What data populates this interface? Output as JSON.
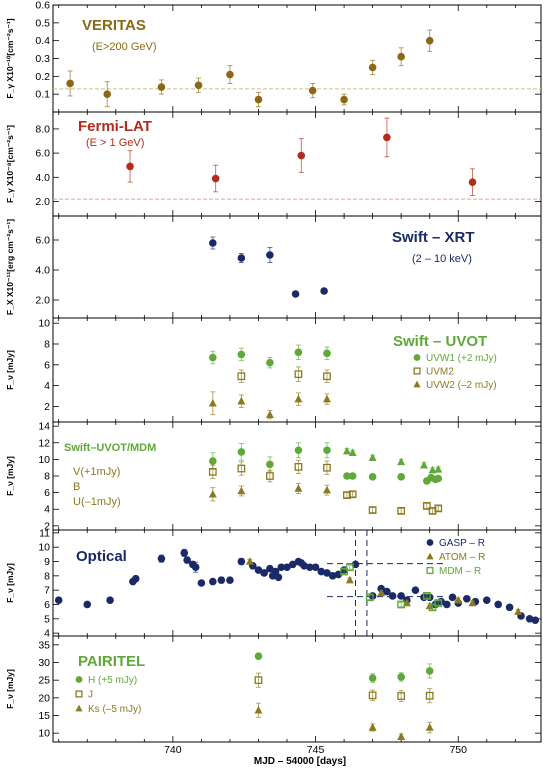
{
  "chart_data": {
    "type": "scatter",
    "xlabel": "MJD – 54000 [days]",
    "x_ticks": [
      740,
      745,
      750
    ],
    "xlim": [
      735.8,
      752.9
    ],
    "colors": {
      "veritas": "#8b6914",
      "fermi": "#b22b1c",
      "swift_blue": "#1a2a66",
      "uvot_green": "#5fa83a",
      "olive": "#8b7a1f",
      "optical_blue": "#1a2a66"
    },
    "panels": [
      {
        "id": "veritas",
        "ylabel": "F_γ X10⁻¹⁰[cm⁻²s⁻¹]",
        "ylim": [
          0.0,
          0.6
        ],
        "yticks": [
          0.1,
          0.2,
          0.3,
          0.4,
          0.5,
          0.6
        ],
        "ytick_labels": [
          "0.1",
          "0.2",
          "0.3",
          "0.4",
          "0.5",
          "0.6"
        ],
        "labels": [
          {
            "text": "VERITAS",
            "role": "title",
            "color": "#8b6914"
          },
          {
            "text": "(E>200 GeV)",
            "role": "subtitle",
            "color": "#8b6914"
          }
        ],
        "hline": 0.13,
        "hline_color": "#c9c08a",
        "series": [
          {
            "marker": "circle",
            "color": "#8b6914",
            "x": [
              736.4,
              737.7,
              739.6,
              740.9,
              742.0,
              743.0,
              744.9,
              746.0,
              747.0,
              748.0,
              749.0
            ],
            "y": [
              0.16,
              0.1,
              0.14,
              0.15,
              0.21,
              0.07,
              0.12,
              0.07,
              0.25,
              0.31,
              0.4
            ],
            "err": [
              0.07,
              0.07,
              0.04,
              0.04,
              0.05,
              0.04,
              0.04,
              0.03,
              0.04,
              0.05,
              0.06
            ]
          }
        ]
      },
      {
        "id": "fermi",
        "ylabel": "F_γ X10⁻⁸[cm⁻²s⁻¹]",
        "ylim": [
          0.8,
          9.4
        ],
        "yticks": [
          2,
          4,
          6,
          8
        ],
        "ytick_labels": [
          "2.0",
          "4.0",
          "6.0",
          "8.0"
        ],
        "labels": [
          {
            "text": "Fermi-LAT",
            "role": "title",
            "color": "#b22b1c"
          },
          {
            "text": "(E > 1 GeV)",
            "role": "subtitle",
            "color": "#b22b1c"
          }
        ],
        "hline": 2.2,
        "hline_color": "#e0a0a0",
        "series": [
          {
            "marker": "circle",
            "color": "#b22b1c",
            "x": [
              738.5,
              741.5,
              744.5,
              747.5,
              750.5
            ],
            "y": [
              4.9,
              3.9,
              5.8,
              7.3,
              3.6
            ],
            "err": [
              1.3,
              1.1,
              1.4,
              1.6,
              1.1
            ]
          }
        ]
      },
      {
        "id": "swift-xrt",
        "ylabel": "F_X X10⁻¹¹[erg cm⁻²s⁻¹]",
        "ylim": [
          0.8,
          7.6
        ],
        "yticks": [
          2,
          4,
          6
        ],
        "ytick_labels": [
          "2.0",
          "4.0",
          "6.0"
        ],
        "labels": [
          {
            "text": "Swift – XRT",
            "role": "title",
            "color": "#1a2a66"
          },
          {
            "text": "(2 – 10 keV)",
            "role": "subtitle",
            "color": "#1a2a66"
          }
        ],
        "series": [
          {
            "marker": "circle",
            "color": "#1a2a66",
            "x": [
              741.4,
              742.4,
              743.4,
              744.3,
              745.3
            ],
            "y": [
              5.8,
              4.8,
              5.0,
              2.4,
              2.6
            ],
            "err": [
              0.4,
              0.3,
              0.5,
              0.15,
              0.15
            ]
          }
        ]
      },
      {
        "id": "swift-uvot",
        "ylabel": "F_ν [mJy]",
        "ylim": [
          0.5,
          10.5
        ],
        "yticks": [
          2,
          4,
          6,
          8,
          10
        ],
        "ytick_labels": [
          "2",
          "4",
          "6",
          "8",
          "10"
        ],
        "labels": [
          {
            "text": "Swift – UVOT",
            "role": "title",
            "color": "#5fa83a"
          }
        ],
        "legend": [
          {
            "marker": "circle",
            "color": "#5fa83a",
            "text": "UVW1 (+2 mJy)"
          },
          {
            "marker": "square-open",
            "color": "#8b7a1f",
            "text": "UVM2"
          },
          {
            "marker": "triangle",
            "color": "#8b7a1f",
            "text": "UVW2 (–2 mJy)"
          }
        ],
        "series": [
          {
            "marker": "circle",
            "color": "#5fa83a",
            "x": [
              741.4,
              742.4,
              743.4,
              744.4,
              745.4
            ],
            "y": [
              6.7,
              7.0,
              6.2,
              7.2,
              7.1
            ],
            "err": [
              0.6,
              0.6,
              0.5,
              0.7,
              0.6
            ]
          },
          {
            "marker": "square-open",
            "color": "#8b7a1f",
            "x": [
              742.4,
              744.4,
              745.4
            ],
            "y": [
              4.9,
              5.1,
              4.9
            ],
            "err": [
              0.6,
              0.7,
              0.6
            ]
          },
          {
            "marker": "triangle",
            "color": "#8b7a1f",
            "x": [
              741.4,
              742.4,
              743.4,
              744.4,
              745.4
            ],
            "y": [
              2.3,
              2.5,
              1.2,
              2.7,
              2.7
            ],
            "err": [
              1.1,
              0.6,
              0.4,
              0.6,
              0.5
            ]
          }
        ]
      },
      {
        "id": "uvot-mdm",
        "ylabel": "F_ν [mJy]",
        "ylim": [
          1.5,
          14.5
        ],
        "yticks": [
          2,
          4,
          6,
          8,
          10,
          12,
          14
        ],
        "ytick_labels": [
          "2",
          "4",
          "6",
          "8",
          "10",
          "12",
          "14"
        ],
        "labels": [
          {
            "text": "Swift–UVOT/MDM",
            "role": "title",
            "color": "#5fa83a"
          },
          {
            "text": "V(+1mJy)",
            "role": "band",
            "color": "#8b7a1f"
          },
          {
            "text": "B",
            "role": "band",
            "color": "#8b7a1f"
          },
          {
            "text": "U(–1mJy)",
            "role": "band",
            "color": "#8b7a1f"
          }
        ],
        "series": [
          {
            "marker": "circle",
            "color": "#5fa83a",
            "x": [
              741.4,
              742.4,
              743.4,
              744.4,
              745.4,
              746.1,
              746.3,
              747.0,
              748.0,
              748.9,
              749.05,
              749.2,
              749.3
            ],
            "y": [
              9.8,
              10.9,
              9.4,
              11.1,
              11.1,
              8.0,
              8.0,
              7.9,
              7.9,
              7.4,
              7.8,
              7.6,
              7.7
            ],
            "err": [
              1.0,
              1.0,
              0.9,
              0.9,
              0.9,
              0.3,
              0.3,
              0.3,
              0.3,
              0.3,
              0.3,
              0.3,
              0.3
            ]
          },
          {
            "marker": "triangle",
            "color": "#5fa83a",
            "x": [
              746.1,
              746.3,
              747.0,
              748.0,
              748.8,
              749.1,
              749.3
            ],
            "y": [
              11.0,
              10.8,
              10.2,
              9.7,
              9.3,
              8.7,
              8.8
            ],
            "err": [
              0.3,
              0.3,
              0.3,
              0.3,
              0.3,
              0.3,
              0.3
            ]
          },
          {
            "marker": "square-open",
            "color": "#8b7a1f",
            "x": [
              741.4,
              742.4,
              743.4,
              744.4,
              745.4,
              746.1,
              746.3,
              747.0,
              748.0,
              748.9,
              749.1,
              749.3
            ],
            "y": [
              8.5,
              8.9,
              8.0,
              9.1,
              9.0,
              5.7,
              5.8,
              3.9,
              3.8,
              4.4,
              3.8,
              4.1
            ],
            "err": [
              0.8,
              0.8,
              0.7,
              0.8,
              0.8,
              0.3,
              0.3,
              0.3,
              0.3,
              0.3,
              0.3,
              0.3
            ]
          },
          {
            "marker": "triangle",
            "color": "#8b7a1f",
            "x": [
              741.4,
              742.4,
              744.4,
              745.4
            ],
            "y": [
              5.8,
              6.2,
              6.5,
              6.3
            ],
            "err": [
              0.8,
              0.6,
              0.6,
              0.6
            ]
          }
        ]
      },
      {
        "id": "optical",
        "ylabel": "F_ν [mJy]",
        "ylim": [
          3.8,
          11.2
        ],
        "yticks": [
          4,
          5,
          6,
          7,
          8,
          9,
          10,
          11
        ],
        "ytick_labels": [
          "4",
          "5",
          "6",
          "7",
          "8",
          "9",
          "10",
          "11"
        ],
        "labels": [
          {
            "text": "Optical",
            "role": "title",
            "color": "#1a2a66"
          }
        ],
        "legend": [
          {
            "marker": "circle",
            "color": "#1a2a66",
            "text": "GASP – R"
          },
          {
            "marker": "triangle",
            "color": "#8b7a1f",
            "text": "ATOM – R"
          },
          {
            "marker": "square-open",
            "color": "#5fa83a",
            "text": "MDM – R"
          }
        ],
        "vlines": [
          746.4,
          746.8
        ],
        "hlines": [
          {
            "y": 8.85,
            "x0": 745.4,
            "x1": 749.5
          },
          {
            "y": 6.55,
            "x0": 745.4,
            "x1": 749.5
          }
        ],
        "series": [
          {
            "marker": "circle",
            "color": "#1a2a66",
            "x": [
              736.0,
              737.0,
              737.8,
              738.6,
              738.7,
              739.6,
              740.4,
              740.5,
              740.7,
              740.8,
              741.0,
              741.4,
              741.7,
              742.0,
              742.4,
              742.8,
              743.0,
              743.2,
              743.4,
              743.5,
              743.6,
              743.7,
              743.8,
              744.0,
              744.2,
              744.4,
              744.5,
              744.6,
              744.8,
              745.0,
              745.2,
              745.4,
              745.6,
              745.8,
              746.0,
              746.4,
              747.0,
              747.3,
              747.5,
              747.7,
              748.0,
              748.2,
              748.5,
              748.8,
              749.0,
              749.2,
              749.4,
              749.6,
              749.8,
              750.0,
              750.3,
              750.6,
              751.0,
              751.4,
              751.8,
              752.2,
              752.5,
              752.7
            ],
            "y": [
              6.3,
              6.0,
              6.3,
              7.6,
              7.8,
              9.2,
              9.6,
              9.1,
              8.8,
              8.6,
              7.5,
              7.6,
              7.7,
              7.7,
              9.0,
              8.7,
              8.4,
              8.2,
              8.5,
              8.0,
              8.3,
              7.9,
              8.6,
              8.6,
              8.8,
              9.0,
              8.9,
              8.7,
              8.6,
              8.6,
              8.3,
              8.2,
              8.0,
              8.1,
              8.4,
              8.8,
              6.6,
              7.1,
              6.9,
              6.6,
              6.6,
              6.3,
              7.0,
              6.5,
              6.5,
              6.0,
              6.2,
              6.0,
              6.5,
              6.1,
              6.4,
              6.2,
              6.3,
              6.0,
              5.8,
              5.2,
              5.0,
              4.9
            ],
            "err": [
              0.1,
              0.1,
              0.1,
              0.1,
              0.1,
              0.25,
              0.25,
              0.2,
              0.2,
              0.35,
              0.1,
              0.1,
              0.2,
              0.1,
              0.2,
              0.1,
              0.1,
              0.1,
              0.1,
              0.1,
              0.1,
              0.1,
              0.1,
              0.1,
              0.1,
              0.1,
              0.1,
              0.1,
              0.1,
              0.1,
              0.1,
              0.1,
              0.1,
              0.1,
              0.1,
              0.1,
              0.1,
              0.1,
              0.1,
              0.1,
              0.1,
              0.1,
              0.1,
              0.1,
              0.1,
              0.1,
              0.1,
              0.1,
              0.1,
              0.1,
              0.1,
              0.1,
              0.1,
              0.1,
              0.1,
              0.1,
              0.1,
              0.1
            ]
          },
          {
            "marker": "triangle",
            "color": "#8b7a1f",
            "x": [
              742.7,
              746.2,
              747.3,
              748.2,
              749.0,
              750.0,
              750.5,
              752.1
            ],
            "y": [
              9.0,
              7.7,
              6.8,
              6.1,
              5.9,
              6.3,
              6.1,
              5.5
            ],
            "err": [
              0.15,
              0.15,
              0.15,
              0.15,
              0.15,
              0.15,
              0.15,
              0.15
            ]
          },
          {
            "marker": "square-open",
            "color": "#5fa83a",
            "x": [
              746.0,
              746.2,
              746.9,
              748.0,
              748.9,
              749.1,
              749.3
            ],
            "y": [
              8.3,
              8.6,
              6.5,
              6.0,
              6.6,
              5.8,
              6.1
            ],
            "err": [
              0.15,
              0.15,
              0.15,
              0.15,
              0.15,
              0.15,
              0.15
            ]
          }
        ]
      },
      {
        "id": "pairitel",
        "ylabel": "F_ν [mJy]",
        "ylim": [
          7.5,
          37.5
        ],
        "yticks": [
          10,
          15,
          20,
          25,
          30,
          35
        ],
        "ytick_labels": [
          "10",
          "15",
          "20",
          "25",
          "30",
          "35"
        ],
        "labels": [
          {
            "text": "PAIRITEL",
            "role": "title",
            "color": "#5fa83a"
          }
        ],
        "legend": [
          {
            "marker": "circle",
            "color": "#5fa83a",
            "text": "H (+5 mJy)"
          },
          {
            "marker": "square-open",
            "color": "#8b7a1f",
            "text": "J"
          },
          {
            "marker": "triangle",
            "color": "#8b7a1f",
            "text": "Ks (–5 mJy)"
          }
        ],
        "series": [
          {
            "marker": "circle",
            "color": "#5fa83a",
            "x": [
              743.0,
              747.0,
              748.0,
              749.0
            ],
            "y": [
              31.8,
              25.6,
              25.9,
              27.6
            ],
            "err": [
              0.8,
              1.2,
              1.2,
              2.0
            ]
          },
          {
            "marker": "square-open",
            "color": "#8b7a1f",
            "x": [
              743.0,
              747.0,
              748.0,
              749.0
            ],
            "y": [
              25.0,
              20.7,
              20.5,
              20.6
            ],
            "err": [
              2.0,
              1.5,
              1.5,
              2.0
            ]
          },
          {
            "marker": "triangle",
            "color": "#8b7a1f",
            "x": [
              743.0,
              747.0,
              748.0,
              749.0
            ],
            "y": [
              16.5,
              11.6,
              9.0,
              11.6
            ],
            "err": [
              2.0,
              1.0,
              0.8,
              1.5
            ]
          }
        ]
      }
    ]
  }
}
